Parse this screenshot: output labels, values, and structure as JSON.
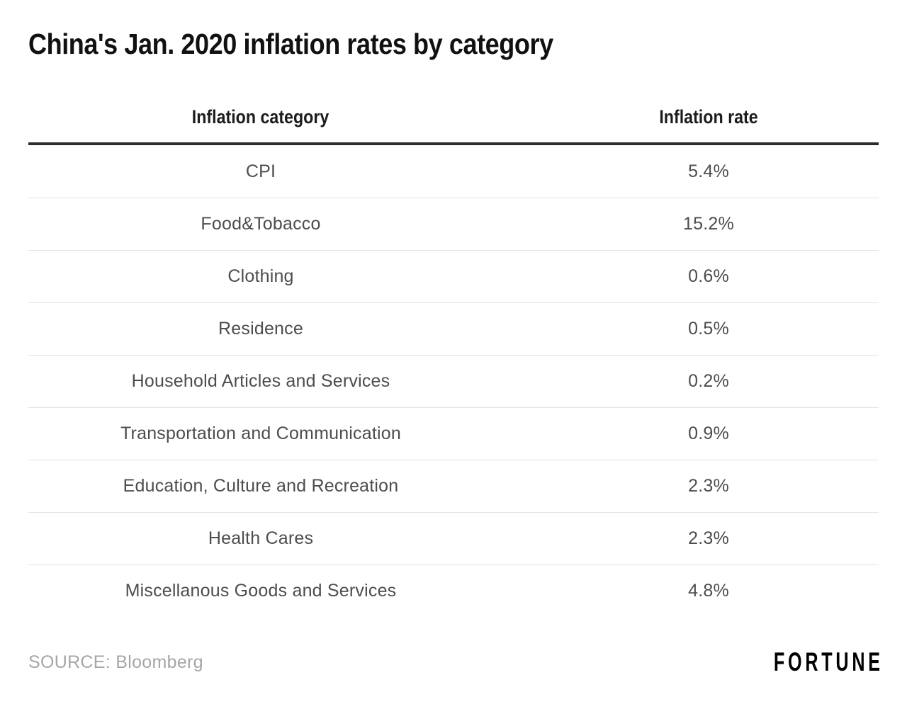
{
  "header": {
    "title": "China's Jan. 2020 inflation rates by category"
  },
  "table": {
    "columns": {
      "category": "Inflation category",
      "rate": "Inflation rate"
    },
    "rows": [
      {
        "category": "CPI",
        "rate": "5.4%"
      },
      {
        "category": "Food&Tobacco",
        "rate": "15.2%"
      },
      {
        "category": "Clothing",
        "rate": "0.6%"
      },
      {
        "category": "Residence",
        "rate": "0.5%"
      },
      {
        "category": "Household Articles and Services",
        "rate": "0.2%"
      },
      {
        "category": "Transportation and Communication",
        "rate": "0.9%"
      },
      {
        "category": "Education, Culture and Recreation",
        "rate": "2.3%"
      },
      {
        "category": "Health Cares",
        "rate": "2.3%"
      },
      {
        "category": "Miscellanous Goods and Services",
        "rate": "4.8%"
      }
    ]
  },
  "footer": {
    "source": "SOURCE: Bloomberg",
    "brand": "FORTUNE"
  },
  "colors": {
    "title": "#111111",
    "rule_heavy": "#2d2d2d",
    "rule_light": "#e3e3e3",
    "body_text": "#4d4d4d",
    "source_text": "#a6a6a6",
    "brand_text": "#000000",
    "background": "#ffffff"
  },
  "chart_data": {
    "type": "table",
    "title": "China's Jan. 2020 inflation rates by category",
    "columns": [
      "Inflation category",
      "Inflation rate"
    ],
    "categories": [
      "CPI",
      "Food&Tobacco",
      "Clothing",
      "Residence",
      "Household Articles and Services",
      "Transportation and Communication",
      "Education, Culture and Recreation",
      "Health Cares",
      "Miscellanous Goods and Services"
    ],
    "values_percent": [
      5.4,
      15.2,
      0.6,
      0.5,
      0.2,
      0.9,
      2.3,
      2.3,
      4.8
    ],
    "rows": [
      [
        "CPI",
        "5.4%"
      ],
      [
        "Food&Tobacco",
        "15.2%"
      ],
      [
        "Clothing",
        "0.6%"
      ],
      [
        "Residence",
        "0.5%"
      ],
      [
        "Household Articles and Services",
        "0.2%"
      ],
      [
        "Transportation and Communication",
        "0.9%"
      ],
      [
        "Education, Culture and Recreation",
        "2.3%"
      ],
      [
        "Health Cares",
        "2.3%"
      ],
      [
        "Miscellanous Goods and Services",
        "4.8%"
      ]
    ],
    "source": "SOURCE: Bloomberg",
    "brand": "FORTUNE",
    "layout": {
      "grid": "horizontal-hairlines",
      "header_rule": "heavy",
      "column_alignment": "center"
    }
  }
}
